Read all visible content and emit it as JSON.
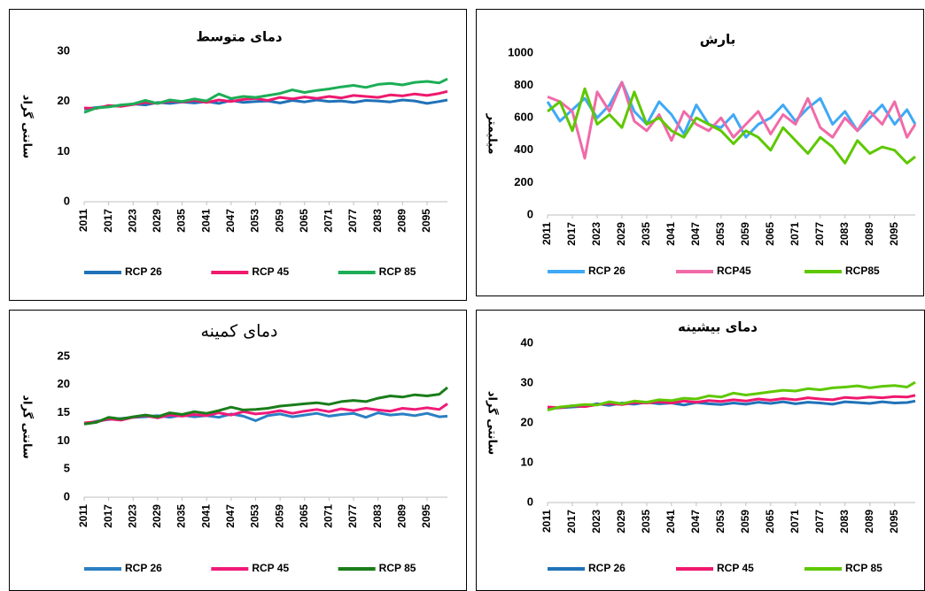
{
  "chart_data": [
    {
      "type": "line",
      "title": "دمای متوسط",
      "ylabel": "سانتی گراد",
      "x": [
        2011,
        2014,
        2017,
        2020,
        2023,
        2026,
        2029,
        2032,
        2035,
        2038,
        2041,
        2044,
        2047,
        2050,
        2053,
        2056,
        2059,
        2062,
        2065,
        2068,
        2071,
        2074,
        2077,
        2080,
        2083,
        2086,
        2089,
        2092,
        2095,
        2098,
        2100
      ],
      "xlim": [
        2011,
        2100
      ],
      "xticks": [
        2011,
        2017,
        2023,
        2029,
        2035,
        2041,
        2047,
        2053,
        2059,
        2065,
        2071,
        2077,
        2083,
        2089,
        2095
      ],
      "ylim": [
        0,
        30
      ],
      "yticks": [
        0,
        10,
        20,
        30
      ],
      "legend": "bottom",
      "series": [
        {
          "name": "RCP 26",
          "color": "#2072b8",
          "values": [
            18.5,
            18.8,
            19,
            19.2,
            19.5,
            19.3,
            19.8,
            19.6,
            19.9,
            19.7,
            20,
            19.6,
            20.2,
            19.8,
            20,
            20.1,
            19.7,
            20.2,
            19.9,
            20.3,
            20,
            20.1,
            19.8,
            20.2,
            20.1,
            19.9,
            20.3,
            20.1,
            19.6,
            20,
            20.3
          ]
        },
        {
          "name": "RCP 45",
          "color": "#ee1a6e",
          "values": [
            18.7,
            18.6,
            19.2,
            19,
            19.4,
            19.8,
            19.6,
            20.1,
            19.9,
            20.2,
            19.8,
            20.3,
            20,
            20.4,
            20.6,
            20.2,
            20.8,
            20.5,
            20.9,
            20.6,
            21,
            20.7,
            21.2,
            21,
            20.8,
            21.3,
            21.1,
            21.5,
            21.2,
            21.6,
            22
          ]
        },
        {
          "name": "RCP 85",
          "color": "#1cae56",
          "values": [
            17.8,
            18.7,
            18.9,
            19.3,
            19.5,
            20.2,
            19.6,
            20.3,
            20,
            20.5,
            20.1,
            21.5,
            20.6,
            21,
            20.8,
            21.2,
            21.6,
            22.3,
            21.8,
            22.2,
            22.5,
            22.9,
            23.2,
            22.8,
            23.4,
            23.6,
            23.3,
            23.8,
            24,
            23.7,
            24.5
          ]
        }
      ]
    },
    {
      "type": "line",
      "title": "بارش",
      "ylabel": "میلیمتر",
      "x": [
        2011,
        2014,
        2017,
        2020,
        2023,
        2026,
        2029,
        2032,
        2035,
        2038,
        2041,
        2044,
        2047,
        2050,
        2053,
        2056,
        2059,
        2062,
        2065,
        2068,
        2071,
        2074,
        2077,
        2080,
        2083,
        2086,
        2089,
        2092,
        2095,
        2098,
        2100
      ],
      "xlim": [
        2011,
        2100
      ],
      "xticks": [
        2011,
        2017,
        2023,
        2029,
        2035,
        2041,
        2047,
        2053,
        2059,
        2065,
        2071,
        2077,
        2083,
        2089,
        2095
      ],
      "ylim": [
        0,
        1000
      ],
      "yticks": [
        0,
        200,
        400,
        600,
        800,
        1000
      ],
      "legend": "bottom",
      "series": [
        {
          "name": "RCP 26",
          "color": "#3fa9f5",
          "values": [
            700,
            580,
            650,
            720,
            600,
            680,
            820,
            640,
            560,
            700,
            620,
            500,
            680,
            560,
            540,
            620,
            480,
            560,
            600,
            680,
            580,
            660,
            720,
            560,
            640,
            520,
            600,
            680,
            560,
            650,
            560
          ]
        },
        {
          "name": "RCP45",
          "color": "#f06aa8",
          "values": [
            730,
            700,
            640,
            350,
            760,
            640,
            820,
            580,
            520,
            620,
            460,
            640,
            560,
            520,
            600,
            480,
            560,
            640,
            500,
            620,
            560,
            720,
            540,
            480,
            600,
            520,
            640,
            560,
            700,
            480,
            560
          ]
        },
        {
          "name": "RCP85",
          "color": "#5ec800",
          "values": [
            640,
            700,
            520,
            780,
            560,
            620,
            540,
            760,
            560,
            600,
            520,
            480,
            600,
            560,
            520,
            440,
            520,
            480,
            400,
            540,
            460,
            380,
            480,
            420,
            320,
            460,
            380,
            420,
            400,
            320,
            360
          ]
        }
      ]
    },
    {
      "type": "line",
      "title": "دمای کمینه",
      "ylabel": "سانتی گراد",
      "x": [
        2011,
        2014,
        2017,
        2020,
        2023,
        2026,
        2029,
        2032,
        2035,
        2038,
        2041,
        2044,
        2047,
        2050,
        2053,
        2056,
        2059,
        2062,
        2065,
        2068,
        2071,
        2074,
        2077,
        2080,
        2083,
        2086,
        2089,
        2092,
        2095,
        2098,
        2100
      ],
      "xlim": [
        2011,
        2100
      ],
      "xticks": [
        2011,
        2017,
        2023,
        2029,
        2035,
        2041,
        2047,
        2053,
        2059,
        2065,
        2071,
        2077,
        2083,
        2089,
        2095
      ],
      "ylim": [
        0,
        25
      ],
      "yticks": [
        0,
        5,
        10,
        15,
        20,
        25
      ],
      "legend": "bottom",
      "series": [
        {
          "name": "RCP 26",
          "color": "#2a7fc4",
          "values": [
            13,
            13.5,
            13.8,
            14,
            14.2,
            14.3,
            14.5,
            14.2,
            14.6,
            14.3,
            14.5,
            14.2,
            14.8,
            14.4,
            13.6,
            14.5,
            14.8,
            14.3,
            14.6,
            14.9,
            14.4,
            14.7,
            14.9,
            14.2,
            15,
            14.6,
            14.8,
            14.5,
            14.9,
            14.3,
            14.4
          ]
        },
        {
          "name": "RCP 45",
          "color": "#f01a78",
          "values": [
            13.2,
            13.4,
            13.9,
            13.7,
            14.2,
            14.5,
            14.1,
            14.6,
            14.4,
            14.7,
            14.5,
            15,
            14.6,
            15.2,
            14.8,
            15,
            15.4,
            14.9,
            15.3,
            15.6,
            15.2,
            15.7,
            15.4,
            15.8,
            15.5,
            15.3,
            15.8,
            15.6,
            15.9,
            15.6,
            16.6
          ]
        },
        {
          "name": "RCP 85",
          "color": "#1a7d1a",
          "values": [
            13,
            13.3,
            14.2,
            13.9,
            14.3,
            14.6,
            14.3,
            15,
            14.7,
            15.2,
            14.9,
            15.4,
            16,
            15.5,
            15.6,
            15.8,
            16.2,
            16.4,
            16.6,
            16.8,
            16.5,
            17,
            17.2,
            17,
            17.6,
            18,
            17.8,
            18.2,
            18,
            18.3,
            19.5
          ]
        }
      ]
    },
    {
      "type": "line",
      "title": "دمای بیشینه",
      "ylabel": "سانتی گراد",
      "x": [
        2011,
        2014,
        2017,
        2020,
        2023,
        2026,
        2029,
        2032,
        2035,
        2038,
        2041,
        2044,
        2047,
        2050,
        2053,
        2056,
        2059,
        2062,
        2065,
        2068,
        2071,
        2074,
        2077,
        2080,
        2083,
        2086,
        2089,
        2092,
        2095,
        2098,
        2100
      ],
      "xlim": [
        2011,
        2100
      ],
      "xticks": [
        2011,
        2017,
        2023,
        2029,
        2035,
        2041,
        2047,
        2053,
        2059,
        2065,
        2071,
        2077,
        2083,
        2089,
        2095
      ],
      "ylim": [
        0,
        40
      ],
      "yticks": [
        0,
        10,
        20,
        30,
        40
      ],
      "legend": "bottom",
      "series": [
        {
          "name": "RCP 26",
          "color": "#2072b8",
          "values": [
            23.5,
            23.8,
            24,
            24.2,
            24.8,
            24.4,
            25,
            24.7,
            25.2,
            24.8,
            25,
            24.5,
            25.1,
            24.8,
            24.6,
            25,
            24.7,
            25.2,
            24.9,
            25.3,
            24.8,
            25.2,
            25,
            24.7,
            25.3,
            25.1,
            24.9,
            25.3,
            25,
            25.1,
            25.5
          ]
        },
        {
          "name": "RCP 45",
          "color": "#f0186e",
          "values": [
            24,
            23.8,
            24.3,
            24.1,
            24.6,
            24.9,
            24.6,
            25.1,
            25,
            25.3,
            25,
            25.5,
            25.2,
            25.6,
            25.4,
            25.8,
            25.5,
            26,
            25.7,
            26.1,
            25.8,
            26.3,
            26,
            25.8,
            26.4,
            26.2,
            26.5,
            26.3,
            26.6,
            26.5,
            26.9
          ]
        },
        {
          "name": "RCP 85",
          "color": "#5ec800",
          "values": [
            23.2,
            24,
            24.3,
            24.6,
            24.5,
            25.3,
            24.8,
            25.5,
            25.2,
            25.8,
            25.6,
            26.2,
            26,
            26.8,
            26.5,
            27.5,
            27,
            27.4,
            27.8,
            28.2,
            28,
            28.6,
            28.3,
            28.8,
            29,
            29.3,
            28.8,
            29.2,
            29.4,
            29,
            30.2
          ]
        }
      ]
    }
  ]
}
